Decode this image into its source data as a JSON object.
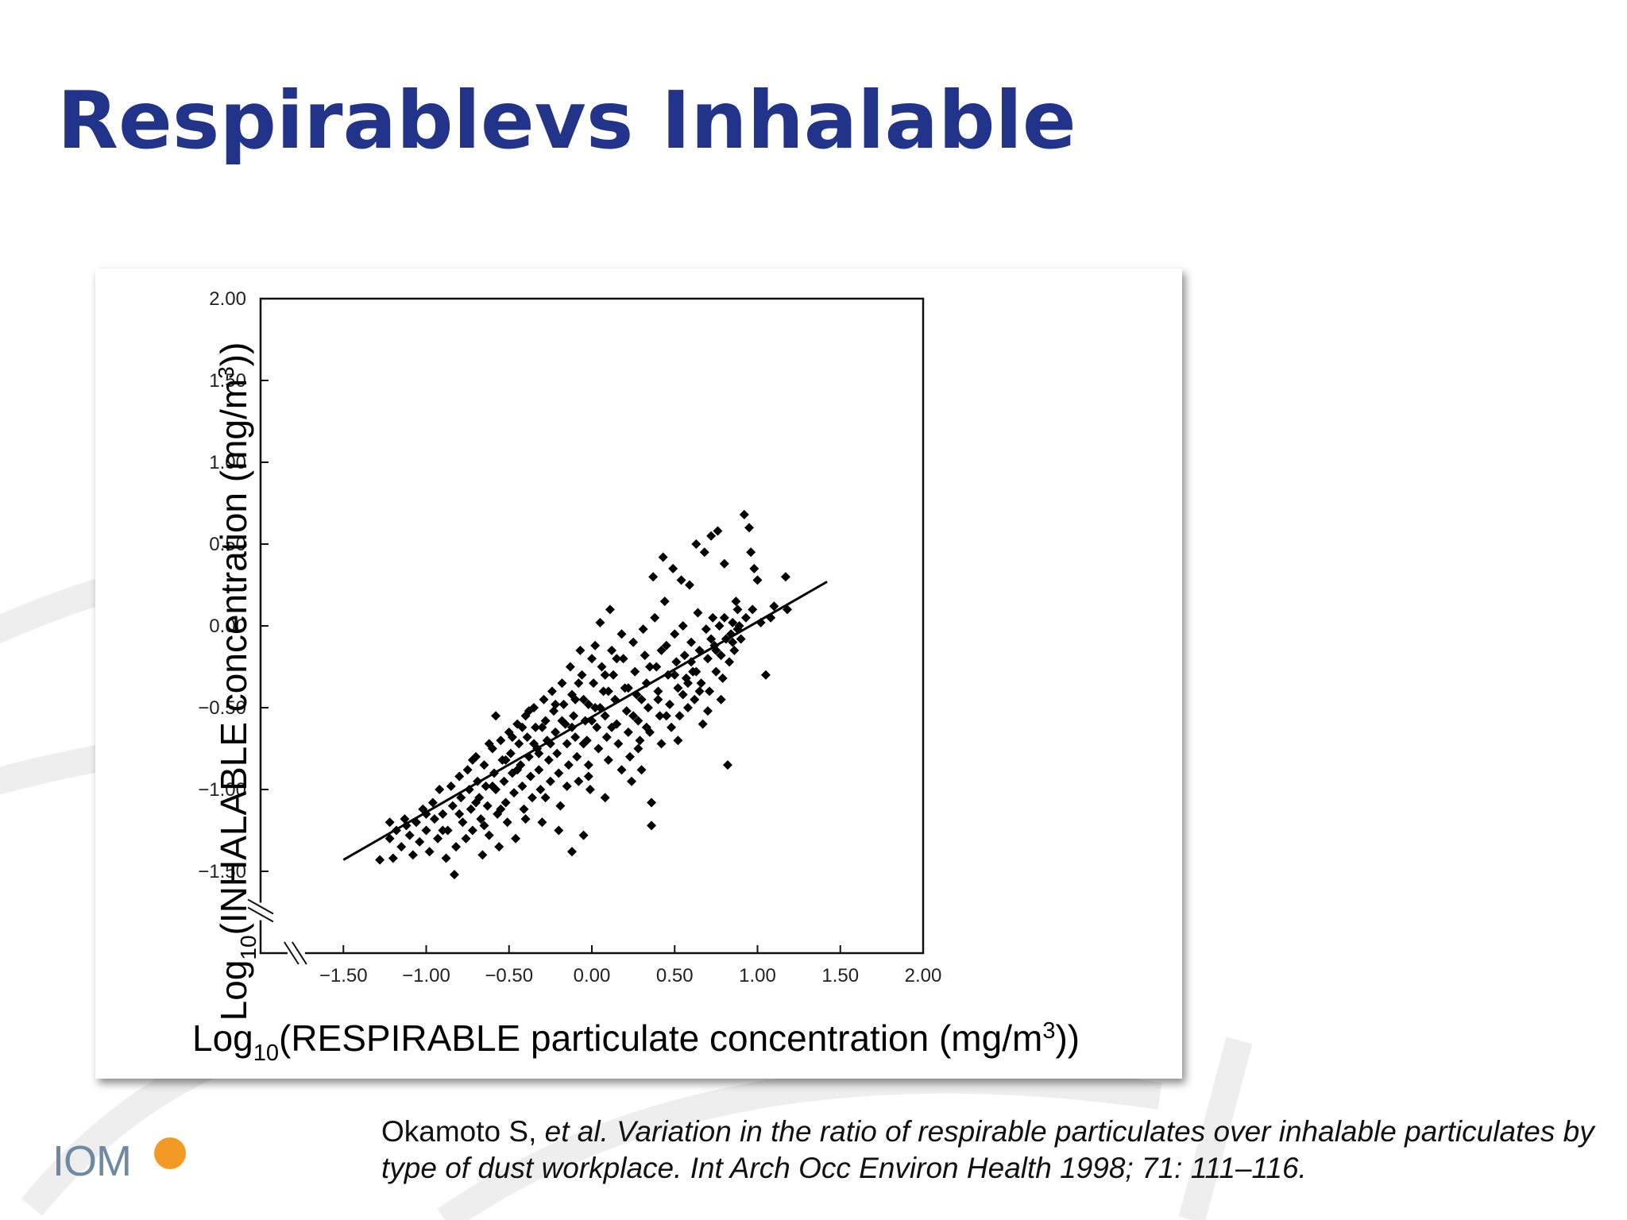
{
  "slide": {
    "title": "Respirablevs Inhalable"
  },
  "citation": {
    "authors": "Okamoto S, ",
    "etal": "et al.",
    "text": " Variation in the ratio of respirable particulates over inhalable particulates by type of dust workplace. Int Arch Occ Environ Health 1998; 71: 111–116."
  },
  "logo": {
    "text": "IOM",
    "sun_color": "#f39a25",
    "text_color": "#6f8aa0"
  },
  "colors": {
    "title": "#22338a",
    "points": "#000000",
    "watermark": "#eeeeee"
  },
  "chart_data": {
    "type": "scatter",
    "title": "",
    "xlabel": {
      "prefix": "Log",
      "sub": "10",
      "main": "(RESPIRABLE particulate concentration (mg/m",
      "sup": "3",
      "suffix": "))"
    },
    "ylabel": {
      "prefix": "Log",
      "sub": "10",
      "main": "(INHALABLE concentration (mg/m",
      "sup": "3",
      "suffix": "))"
    },
    "xlim": [
      -2.0,
      2.0
    ],
    "ylim": [
      -2.0,
      2.0
    ],
    "xticks": [
      -1.5,
      -1.0,
      -0.5,
      0.0,
      0.5,
      1.0,
      1.5,
      2.0
    ],
    "yticks": [
      -1.5,
      -1.0,
      -0.5,
      0.0,
      0.5,
      1.0,
      1.5,
      2.0
    ],
    "xtick_labels": [
      "−1.50",
      "−1.00",
      "−0.50",
      "0.00",
      "0.50",
      "1.00",
      "1.50",
      "2.00"
    ],
    "ytick_labels": [
      "−1.50",
      "−1.00",
      "−0.50",
      "0.00",
      "0.50",
      "1.00",
      "1.50",
      "2.00"
    ],
    "axis_breaks": true,
    "grid": false,
    "legend": "none",
    "regression_line": {
      "x": [
        -1.5,
        1.42
      ],
      "y": [
        -1.43,
        0.27
      ]
    },
    "points": [
      [
        -1.28,
        -1.43
      ],
      [
        -1.22,
        -1.2
      ],
      [
        -1.22,
        -1.3
      ],
      [
        -1.2,
        -1.42
      ],
      [
        -1.18,
        -1.25
      ],
      [
        -1.15,
        -1.35
      ],
      [
        -1.13,
        -1.18
      ],
      [
        -1.1,
        -1.28
      ],
      [
        -1.08,
        -1.4
      ],
      [
        -1.06,
        -1.2
      ],
      [
        -1.04,
        -1.32
      ],
      [
        -1.02,
        -1.12
      ],
      [
        -1.0,
        -1.25
      ],
      [
        -0.98,
        -1.38
      ],
      [
        -0.96,
        -1.08
      ],
      [
        -0.95,
        -1.18
      ],
      [
        -0.93,
        -1.3
      ],
      [
        -0.92,
        -1.0
      ],
      [
        -0.9,
        -1.15
      ],
      [
        -0.88,
        -1.42
      ],
      [
        -0.87,
        -1.25
      ],
      [
        -0.85,
        -0.98
      ],
      [
        -0.84,
        -1.1
      ],
      [
        -0.83,
        -1.52
      ],
      [
        -0.82,
        -1.35
      ],
      [
        -0.8,
        -0.92
      ],
      [
        -0.79,
        -1.05
      ],
      [
        -0.78,
        -1.2
      ],
      [
        -0.76,
        -1.3
      ],
      [
        -0.75,
        -0.88
      ],
      [
        -0.74,
        -1.0
      ],
      [
        -0.73,
        -1.12
      ],
      [
        -0.72,
        -1.25
      ],
      [
        -0.7,
        -0.8
      ],
      [
        -0.69,
        -0.95
      ],
      [
        -0.68,
        -1.05
      ],
      [
        -0.67,
        -1.18
      ],
      [
        -0.66,
        -1.4
      ],
      [
        -0.65,
        -0.85
      ],
      [
        -0.64,
        -0.98
      ],
      [
        -0.63,
        -1.1
      ],
      [
        -0.62,
        -1.28
      ],
      [
        -0.6,
        -0.75
      ],
      [
        -0.59,
        -0.9
      ],
      [
        -0.58,
        -1.0
      ],
      [
        -0.57,
        -1.15
      ],
      [
        -0.56,
        -1.35
      ],
      [
        -0.55,
        -0.7
      ],
      [
        -0.54,
        -0.82
      ],
      [
        -0.53,
        -0.95
      ],
      [
        -0.52,
        -1.08
      ],
      [
        -0.51,
        -1.2
      ],
      [
        -0.5,
        -0.65
      ],
      [
        -0.49,
        -0.78
      ],
      [
        -0.48,
        -0.9
      ],
      [
        -0.47,
        -1.02
      ],
      [
        -0.46,
        -1.3
      ],
      [
        -0.45,
        -0.6
      ],
      [
        -0.44,
        -0.72
      ],
      [
        -0.43,
        -0.85
      ],
      [
        -0.42,
        -0.98
      ],
      [
        -0.41,
        -1.12
      ],
      [
        -0.4,
        -0.55
      ],
      [
        -0.39,
        -0.68
      ],
      [
        -0.38,
        -0.8
      ],
      [
        -0.37,
        -0.92
      ],
      [
        -0.36,
        -1.05
      ],
      [
        -0.35,
        -0.5
      ],
      [
        -0.34,
        -0.62
      ],
      [
        -0.33,
        -0.75
      ],
      [
        -0.32,
        -0.88
      ],
      [
        -0.31,
        -1.0
      ],
      [
        -0.3,
        -1.2
      ],
      [
        -0.29,
        -0.45
      ],
      [
        -0.28,
        -0.58
      ],
      [
        -0.27,
        -0.7
      ],
      [
        -0.26,
        -0.82
      ],
      [
        -0.25,
        -0.95
      ],
      [
        -0.24,
        -0.4
      ],
      [
        -0.23,
        -0.52
      ],
      [
        -0.22,
        -0.65
      ],
      [
        -0.21,
        -0.78
      ],
      [
        -0.2,
        -0.9
      ],
      [
        -0.19,
        -1.1
      ],
      [
        -0.18,
        -0.35
      ],
      [
        -0.17,
        -0.48
      ],
      [
        -0.16,
        -0.6
      ],
      [
        -0.15,
        -0.72
      ],
      [
        -0.14,
        -0.85
      ],
      [
        -0.13,
        -0.25
      ],
      [
        -0.12,
        -0.42
      ],
      [
        -0.11,
        -0.55
      ],
      [
        -0.1,
        -0.68
      ],
      [
        -0.09,
        -0.8
      ],
      [
        -0.08,
        -0.95
      ],
      [
        -0.07,
        -0.15
      ],
      [
        -0.06,
        -0.3
      ],
      [
        -0.05,
        -0.45
      ],
      [
        -0.04,
        -0.58
      ],
      [
        -0.03,
        -0.7
      ],
      [
        -0.02,
        -0.85
      ],
      [
        -0.01,
        -1.0
      ],
      [
        0.0,
        -0.2
      ],
      [
        0.01,
        -0.35
      ],
      [
        0.02,
        -0.5
      ],
      [
        0.03,
        -0.62
      ],
      [
        0.04,
        -0.75
      ],
      [
        0.05,
        0.02
      ],
      [
        0.06,
        -0.25
      ],
      [
        0.07,
        -0.4
      ],
      [
        0.08,
        -0.55
      ],
      [
        0.09,
        -0.68
      ],
      [
        0.1,
        -0.82
      ],
      [
        0.11,
        0.1
      ],
      [
        0.12,
        -0.15
      ],
      [
        0.13,
        -0.3
      ],
      [
        0.14,
        -0.45
      ],
      [
        0.15,
        -0.6
      ],
      [
        0.16,
        -0.72
      ],
      [
        0.18,
        -0.05
      ],
      [
        0.19,
        -0.2
      ],
      [
        0.2,
        -0.38
      ],
      [
        0.21,
        -0.52
      ],
      [
        0.22,
        -0.65
      ],
      [
        0.23,
        -0.8
      ],
      [
        0.24,
        -0.95
      ],
      [
        0.25,
        -0.1
      ],
      [
        0.26,
        -0.28
      ],
      [
        0.27,
        -0.42
      ],
      [
        0.28,
        -0.58
      ],
      [
        0.29,
        -0.7
      ],
      [
        0.3,
        -0.88
      ],
      [
        0.31,
        -0.02
      ],
      [
        0.32,
        -0.18
      ],
      [
        0.33,
        -0.35
      ],
      [
        0.34,
        -0.5
      ],
      [
        0.35,
        -0.65
      ],
      [
        0.36,
        -1.08
      ],
      [
        0.36,
        -1.22
      ],
      [
        0.37,
        0.3
      ],
      [
        0.38,
        0.05
      ],
      [
        0.39,
        -0.25
      ],
      [
        0.4,
        -0.4
      ],
      [
        0.41,
        -0.55
      ],
      [
        0.42,
        -0.72
      ],
      [
        0.43,
        0.42
      ],
      [
        0.44,
        0.15
      ],
      [
        0.45,
        -0.12
      ],
      [
        0.46,
        -0.3
      ],
      [
        0.47,
        -0.48
      ],
      [
        0.48,
        -0.62
      ],
      [
        0.49,
        0.35
      ],
      [
        0.5,
        -0.05
      ],
      [
        0.51,
        -0.22
      ],
      [
        0.52,
        -0.38
      ],
      [
        0.53,
        -0.55
      ],
      [
        0.54,
        0.28
      ],
      [
        0.55,
        0.0
      ],
      [
        0.56,
        -0.18
      ],
      [
        0.57,
        -0.32
      ],
      [
        0.58,
        -0.5
      ],
      [
        0.59,
        0.25
      ],
      [
        0.6,
        -0.1
      ],
      [
        0.61,
        -0.28
      ],
      [
        0.62,
        -0.45
      ],
      [
        0.63,
        0.5
      ],
      [
        0.64,
        0.08
      ],
      [
        0.65,
        -0.15
      ],
      [
        0.66,
        -0.35
      ],
      [
        0.67,
        -0.6
      ],
      [
        0.68,
        0.45
      ],
      [
        0.69,
        -0.02
      ],
      [
        0.7,
        -0.2
      ],
      [
        0.71,
        -0.4
      ],
      [
        0.72,
        0.55
      ],
      [
        0.73,
        0.05
      ],
      [
        0.74,
        -0.12
      ],
      [
        0.75,
        -0.28
      ],
      [
        0.76,
        0.58
      ],
      [
        0.77,
        0.0
      ],
      [
        0.78,
        -0.18
      ],
      [
        0.79,
        -0.32
      ],
      [
        0.8,
        0.38
      ],
      [
        0.81,
        -0.08
      ],
      [
        0.82,
        -0.85
      ],
      [
        0.83,
        -0.22
      ],
      [
        0.84,
        -0.05
      ],
      [
        0.85,
        0.02
      ],
      [
        0.86,
        -0.15
      ],
      [
        0.87,
        0.15
      ],
      [
        0.88,
        -0.02
      ],
      [
        0.89,
        0.0
      ],
      [
        0.9,
        -0.08
      ],
      [
        0.92,
        0.68
      ],
      [
        0.93,
        0.05
      ],
      [
        0.95,
        0.6
      ],
      [
        0.96,
        0.45
      ],
      [
        0.97,
        0.1
      ],
      [
        0.98,
        0.35
      ],
      [
        1.0,
        0.28
      ],
      [
        1.02,
        0.02
      ],
      [
        1.05,
        -0.3
      ],
      [
        1.08,
        0.05
      ],
      [
        1.1,
        0.12
      ],
      [
        1.17,
        0.3
      ],
      [
        1.18,
        0.1
      ],
      [
        -0.35,
        -0.72
      ],
      [
        -0.28,
        -1.05
      ],
      [
        -0.2,
        -1.25
      ],
      [
        -0.12,
        -1.38
      ],
      [
        -0.05,
        -1.28
      ],
      [
        0.05,
        -0.5
      ],
      [
        0.12,
        -0.62
      ],
      [
        0.18,
        -0.88
      ],
      [
        0.22,
        -0.38
      ],
      [
        0.28,
        -0.75
      ],
      [
        0.33,
        -0.62
      ],
      [
        0.4,
        -0.45
      ],
      [
        0.45,
        -0.55
      ],
      [
        0.52,
        -0.7
      ],
      [
        0.58,
        -0.35
      ],
      [
        0.63,
        -0.28
      ],
      [
        0.7,
        -0.52
      ],
      [
        0.78,
        -0.45
      ],
      [
        -0.6,
        -0.98
      ],
      [
        -0.55,
        -1.12
      ],
      [
        -0.45,
        -0.88
      ],
      [
        -0.4,
        -1.18
      ],
      [
        -0.3,
        -0.62
      ],
      [
        -0.25,
        -0.72
      ],
      [
        -0.15,
        -0.98
      ],
      [
        -0.1,
        -0.45
      ],
      [
        -0.05,
        -0.72
      ],
      [
        0.0,
        -0.58
      ],
      [
        -0.65,
        -1.22
      ],
      [
        -0.7,
        -1.08
      ],
      [
        -0.8,
        -1.15
      ],
      [
        -0.9,
        -1.25
      ],
      [
        -1.0,
        -1.15
      ],
      [
        -1.12,
        -1.22
      ],
      [
        -0.58,
        -0.55
      ],
      [
        -0.48,
        -0.68
      ],
      [
        -0.38,
        -0.52
      ],
      [
        -0.18,
        -0.58
      ],
      [
        -0.08,
        -0.35
      ],
      [
        0.02,
        -0.12
      ],
      [
        0.08,
        -0.3
      ],
      [
        0.15,
        -0.2
      ],
      [
        0.25,
        -0.55
      ],
      [
        0.3,
        -0.45
      ],
      [
        0.35,
        -0.25
      ],
      [
        0.42,
        -0.15
      ],
      [
        0.5,
        -0.3
      ],
      [
        0.55,
        -0.42
      ],
      [
        0.6,
        -0.22
      ],
      [
        0.65,
        -0.4
      ],
      [
        0.72,
        -0.08
      ],
      [
        0.75,
        -0.15
      ],
      [
        0.8,
        0.05
      ],
      [
        0.85,
        -0.1
      ],
      [
        0.88,
        0.1
      ],
      [
        -0.02,
        -0.92
      ],
      [
        0.08,
        -1.05
      ],
      [
        -0.72,
        -0.82
      ],
      [
        -0.62,
        -0.72
      ],
      [
        -0.52,
        -0.82
      ],
      [
        -0.42,
        -0.62
      ],
      [
        -0.32,
        -0.78
      ],
      [
        -0.22,
        -0.48
      ],
      [
        -0.12,
        -0.62
      ],
      [
        -0.02,
        -0.48
      ],
      [
        0.1,
        -0.4
      ]
    ]
  }
}
